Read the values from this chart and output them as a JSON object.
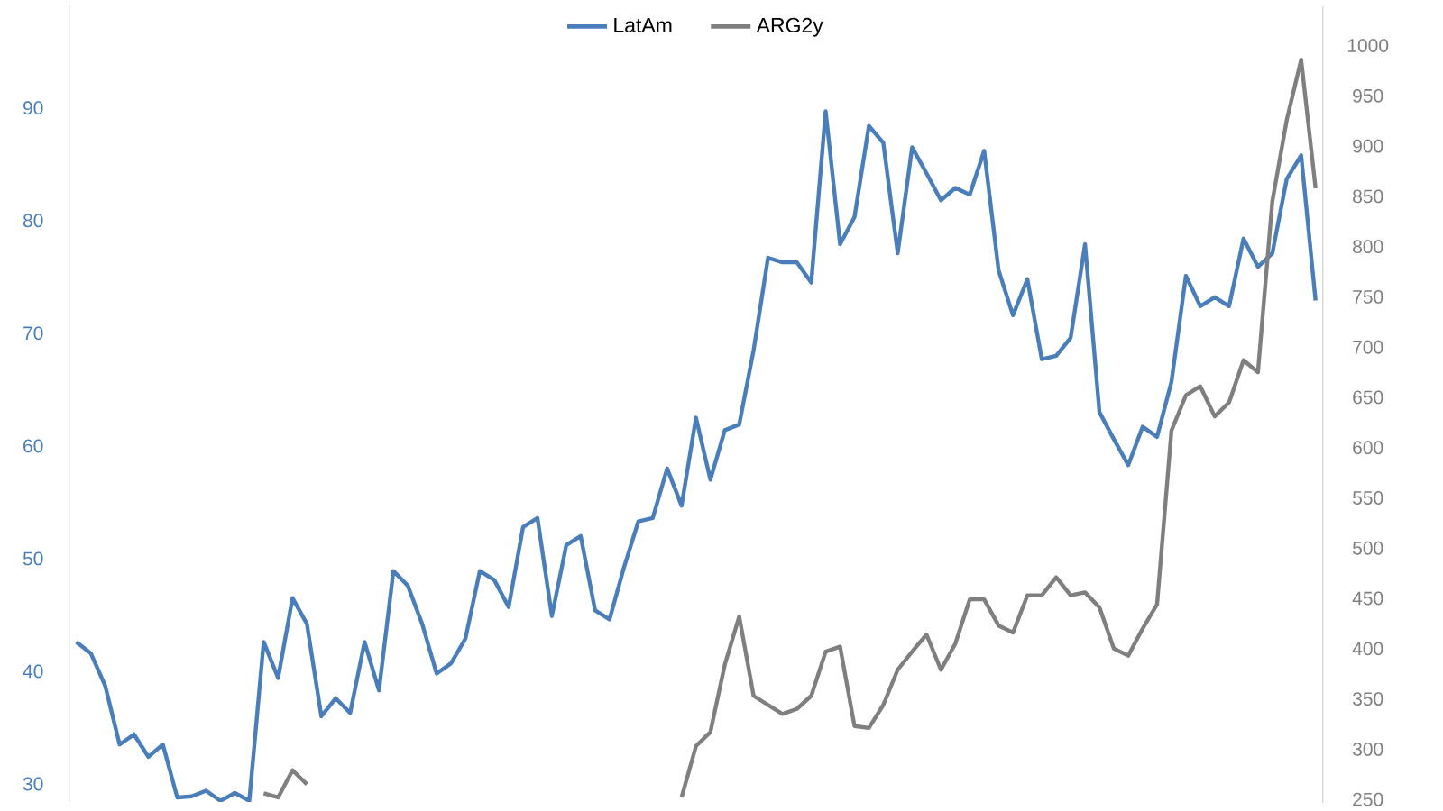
{
  "chart_data": {
    "type": "line",
    "categories": [
      null,
      null,
      null,
      null,
      null,
      null,
      null,
      null,
      null,
      null,
      null,
      null,
      null,
      null,
      null,
      null,
      null,
      null,
      null,
      null,
      null,
      null,
      null,
      null,
      null,
      null,
      null,
      null,
      null,
      null,
      null,
      null,
      null,
      null,
      null,
      null,
      null,
      null,
      null,
      null,
      null,
      null,
      null,
      null,
      null,
      null,
      null,
      null,
      null,
      null,
      null,
      null,
      null,
      null,
      null,
      null,
      null,
      null,
      null,
      null,
      null,
      null,
      null,
      null,
      null,
      null,
      null,
      null,
      null,
      null,
      null,
      null,
      null,
      null,
      null,
      null,
      null,
      null,
      null,
      null,
      null,
      null,
      null,
      null,
      null,
      null,
      null
    ],
    "series": [
      {
        "name": "LatAm",
        "color": "#4a7ebb",
        "values": [
          42.6,
          41.6,
          38.7,
          33.5,
          34.4,
          32.4,
          33.5,
          28.8,
          28.9,
          29.4,
          28.5,
          29.2,
          28.5,
          42.6,
          39.4,
          46.5,
          44.2,
          36.0,
          37.6,
          36.3,
          42.6,
          38.3,
          48.9,
          47.6,
          44.2,
          39.8,
          40.7,
          42.9,
          48.9,
          48.1,
          45.7,
          52.8,
          53.6,
          44.9,
          51.2,
          52.0,
          45.4,
          44.6,
          49.2,
          53.3,
          53.6,
          58.0,
          54.7,
          62.5,
          57.0,
          61.4,
          61.9,
          68.5,
          76.7,
          76.3,
          76.3,
          74.5,
          89.7,
          77.9,
          80.3,
          88.4,
          86.9,
          77.1,
          86.5,
          84.2,
          81.8,
          82.9,
          82.3,
          86.2,
          75.6,
          71.6,
          74.8,
          67.7,
          68.0,
          69.6,
          77.9,
          63.0,
          60.6,
          58.3,
          61.7,
          60.8,
          65.7,
          75.1,
          72.4,
          73.2,
          72.4,
          78.4,
          75.9,
          77.1,
          83.7,
          85.8,
          72.9
        ]
      },
      {
        "name": "ARG2y",
        "color": "#7f7f7f",
        "axis": "y2",
        "values": [
          null,
          null,
          null,
          null,
          null,
          null,
          null,
          null,
          null,
          null,
          null,
          null,
          null,
          256,
          252,
          279,
          265,
          null,
          null,
          null,
          null,
          null,
          null,
          null,
          null,
          null,
          null,
          null,
          null,
          null,
          null,
          null,
          null,
          null,
          null,
          null,
          null,
          null,
          null,
          null,
          null,
          null,
          252,
          303,
          317,
          384,
          432,
          353,
          344,
          335,
          340,
          353,
          397,
          402,
          323,
          321,
          344,
          379,
          397,
          414,
          379,
          405,
          449,
          449,
          423,
          416,
          453,
          453,
          471,
          453,
          456,
          441,
          400,
          393,
          420,
          444,
          617,
          652,
          661,
          631,
          645,
          687,
          675,
          845,
          926,
          986,
          858
        ]
      }
    ],
    "ylim": [
      28.4,
      99.1
    ],
    "yticks": [
      30,
      40,
      50,
      60,
      70,
      80,
      90
    ],
    "y2lim": [
      246.5,
      1039
    ],
    "y2ticks": [
      250,
      300,
      350,
      400,
      450,
      500,
      550,
      600,
      650,
      700,
      750,
      800,
      850,
      900,
      950,
      1000
    ],
    "legend": "top",
    "line_style": "solid"
  }
}
